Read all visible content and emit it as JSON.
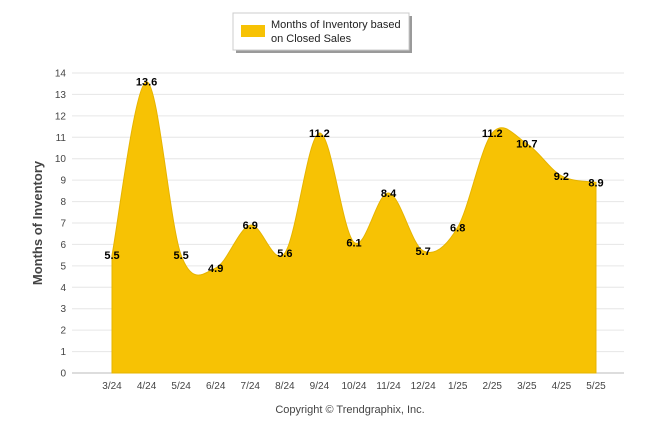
{
  "chart_data": {
    "type": "area",
    "categories": [
      "3/24",
      "4/24",
      "5/24",
      "6/24",
      "7/24",
      "8/24",
      "9/24",
      "10/24",
      "11/24",
      "12/24",
      "1/25",
      "2/25",
      "3/25",
      "4/25",
      "5/25"
    ],
    "series": [
      {
        "name": "Months of Inventory based on Closed Sales",
        "values": [
          5.5,
          13.6,
          5.5,
          4.9,
          6.9,
          5.6,
          11.2,
          6.1,
          8.4,
          5.7,
          6.8,
          11.2,
          10.7,
          9.2,
          8.9
        ],
        "color": "#F7C204"
      }
    ],
    "data_labels": [
      "5.5",
      "13.6",
      "5.5",
      "4.9",
      "6.9",
      "5.6",
      "11.2",
      "6.1",
      "8.4",
      "5.7",
      "6.8",
      "11.2",
      "10.7",
      "9.2",
      "8.9"
    ],
    "ylabel": "Months of Inventory",
    "xlabel": "",
    "ylim": [
      0,
      14
    ],
    "yticks": [
      0,
      1,
      2,
      3,
      4,
      5,
      6,
      7,
      8,
      9,
      10,
      11,
      12,
      13,
      14
    ],
    "grid": true,
    "legend_position": "top-center",
    "legend_lines": [
      "Months of Inventory based",
      "on Closed Sales"
    ],
    "credit": "Copyright © Trendgraphix, Inc."
  }
}
